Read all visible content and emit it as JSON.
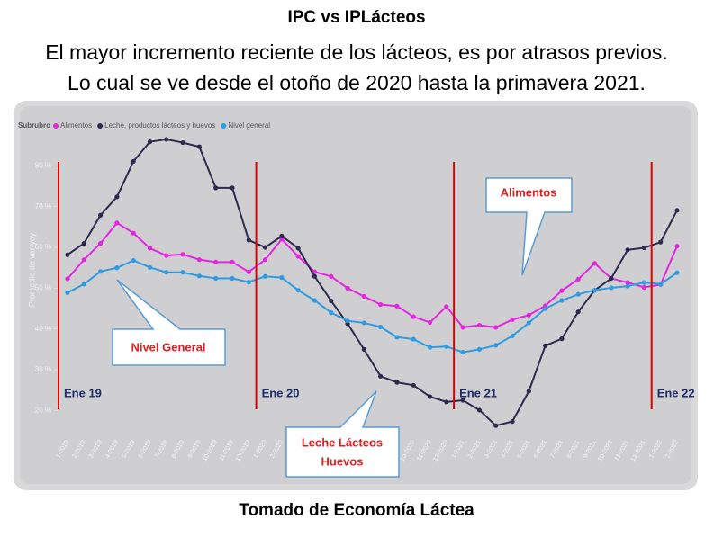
{
  "chart_data": {
    "type": "line",
    "title": "IPC vs IPLácteos",
    "subtitle": [
      "El mayor incremento reciente de los lácteos, es por atrasos previos.",
      "Lo cual se ve desde el otoño de 2020 hasta la primavera 2021."
    ],
    "source": "Tomado de Economía Láctea",
    "legend_title": "Subrubro",
    "y_label": "Promedio de var yoy",
    "categories": [
      "1-2019",
      "2-2019",
      "3-2019",
      "4-2019",
      "5-2019",
      "6-2019",
      "7-2019",
      "8-2019",
      "9-2019",
      "10-2019",
      "11-2019",
      "12-2019",
      "1-2020",
      "2-2020",
      "3-2020",
      "4-2020",
      "5-2020",
      "6-2020",
      "7-2020",
      "8-2020",
      "9-2020",
      "10-2020",
      "11-2020",
      "12-2020",
      "1-2021",
      "2-2021",
      "3-2021",
      "4-2021",
      "5-2021",
      "6-2021",
      "7-2021",
      "8-2021",
      "9-2021",
      "10-2021",
      "11-2021",
      "12-2021",
      "1-2022",
      "2-2022"
    ],
    "series": [
      {
        "name": "Alimentos",
        "color": "#e426e0",
        "values": [
          52.3,
          57,
          61,
          66,
          63.5,
          59.8,
          58,
          58.3,
          57,
          56.4,
          56.4,
          54,
          57,
          62,
          57.8,
          54,
          52.9,
          50,
          48,
          46,
          45.6,
          43,
          41.6,
          45.5,
          40.4,
          40.9,
          40.4,
          42.3,
          43.4,
          45.7,
          49.4,
          52.2,
          56.1,
          52.4,
          51.4,
          50.2,
          50.9,
          60.3
        ]
      },
      {
        "name": "Leche, productos lácteos y huevos",
        "color": "#2e2a4f",
        "values": [
          58.2,
          61,
          67.9,
          72.4,
          81.1,
          85.9,
          86.5,
          85.7,
          84.7,
          74.6,
          74.6,
          61.8,
          60,
          62.8,
          59.8,
          52.9,
          46.9,
          41.3,
          35,
          28.4,
          26.9,
          26.2,
          23.4,
          22.1,
          22.5,
          20.1,
          16.3,
          17.3,
          24.7,
          35.9,
          37.6,
          44.2,
          49.5,
          52.4,
          59.4,
          59.9,
          61.3,
          69.1
        ]
      },
      {
        "name": "Nivel general",
        "color": "#2f9be0",
        "values": [
          48.9,
          51,
          54.1,
          55,
          56.8,
          55.1,
          53.9,
          53.9,
          53,
          52.4,
          52.4,
          51.5,
          52.9,
          52.6,
          49.5,
          47,
          44,
          42,
          41.5,
          40.5,
          38,
          37.5,
          35.5,
          35.7,
          34.3,
          35,
          36,
          38.3,
          41.5,
          45,
          47,
          48.5,
          49.5,
          50.1,
          50.5,
          51.4,
          51,
          53.8
        ]
      }
    ],
    "ylim": [
      17,
      92
    ],
    "yticks": [
      {
        "value": 20,
        "label": "20 %"
      },
      {
        "value": 30,
        "label": "30 %"
      },
      {
        "value": 40,
        "label": "40 %"
      },
      {
        "value": 50,
        "label": "50 %"
      },
      {
        "value": 60,
        "label": "60 %"
      },
      {
        "value": 70,
        "label": "70 %"
      },
      {
        "value": 80,
        "label": "80 %"
      }
    ],
    "markers": [
      {
        "label": "Ene 19",
        "at": "1-2019"
      },
      {
        "label": "Ene 20",
        "at": "1-2020"
      },
      {
        "label": "Ene 21",
        "at": "1-2021"
      },
      {
        "label": "Ene 22",
        "at": "1-2022"
      }
    ],
    "annotations": {
      "alimentos": "Alimentos",
      "nivel": "Nivel General",
      "leche": [
        "Leche Lácteos",
        "Huevos"
      ]
    }
  }
}
